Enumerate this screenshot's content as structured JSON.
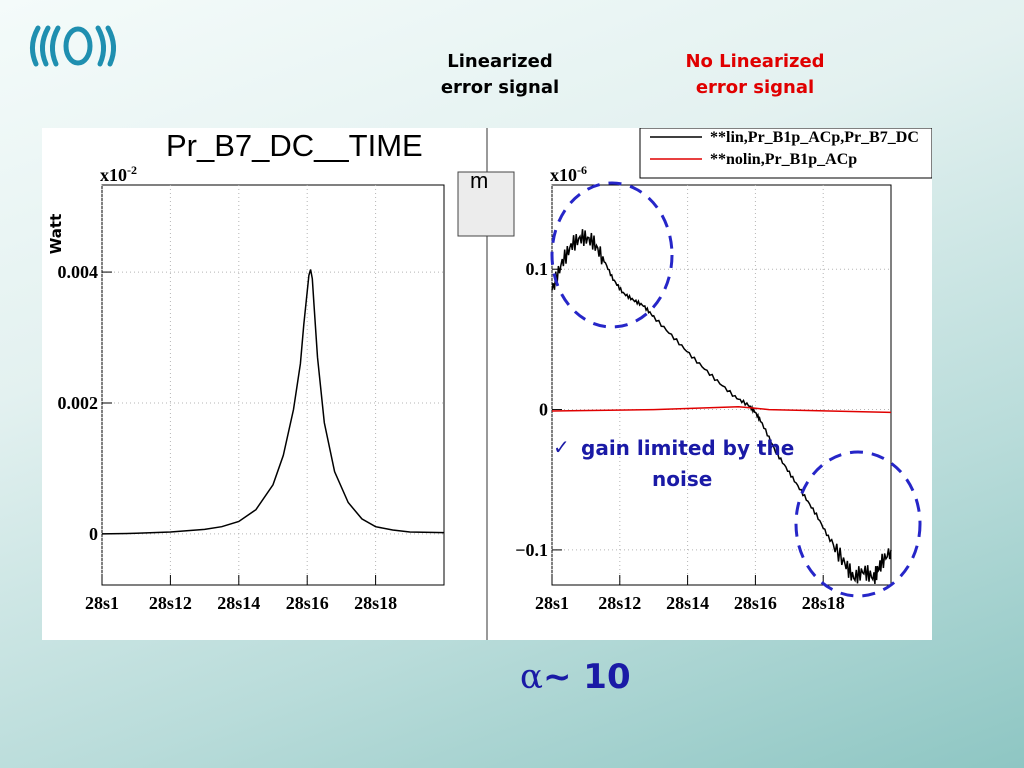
{
  "header": {
    "linearized_label": "Linearized\nerror signal",
    "nonlinearized_label": "No Linearized\nerror signal"
  },
  "colors": {
    "linearized": "#000000",
    "nonlinearized": "#e00000",
    "annotation": "#1a1aa6"
  },
  "icons": {
    "logo": "wave-arc-logo-icon",
    "annotation_bullet": "checkmark-icon"
  },
  "chart_data": [
    {
      "type": "line",
      "title": "Pr_B7_DC__TIME",
      "ylabel": "Watt",
      "y_exponent": "x10",
      "y_exponent_power": "-2",
      "x_tick_labels": [
        "28s1",
        "28s12",
        "28s14",
        "28s16",
        "28s18"
      ],
      "y_tick_labels": [
        "0",
        "0.002",
        "0.004"
      ],
      "xlim": [
        0,
        1
      ],
      "ylim": [
        -0.00078,
        0.00533
      ],
      "x_ticks": [
        0.0,
        0.2,
        0.4,
        0.6,
        0.8
      ],
      "y_ticks": [
        0,
        0.002,
        0.004
      ],
      "grid": true,
      "series": [
        {
          "color": "#000000",
          "points": [
            [
              0.0,
              0.0
            ],
            [
              0.1,
              1e-05
            ],
            [
              0.2,
              3e-05
            ],
            [
              0.3,
              7e-05
            ],
            [
              0.35,
              0.00011
            ],
            [
              0.4,
              0.00019
            ],
            [
              0.45,
              0.00037
            ],
            [
              0.5,
              0.00075
            ],
            [
              0.53,
              0.0012
            ],
            [
              0.56,
              0.0019
            ],
            [
              0.58,
              0.0026
            ],
            [
              0.59,
              0.0032
            ],
            [
              0.6,
              0.0037
            ],
            [
              0.605,
              0.00395
            ],
            [
              0.61,
              0.00404
            ],
            [
              0.615,
              0.0039
            ],
            [
              0.62,
              0.0035
            ],
            [
              0.63,
              0.0027
            ],
            [
              0.65,
              0.0017
            ],
            [
              0.68,
              0.00095
            ],
            [
              0.72,
              0.00048
            ],
            [
              0.76,
              0.00023
            ],
            [
              0.8,
              0.00011
            ],
            [
              0.85,
              6e-05
            ],
            [
              0.9,
              3e-05
            ],
            [
              1.0,
              2e-05
            ]
          ]
        }
      ]
    },
    {
      "type": "line",
      "y_exponent": "x10",
      "y_exponent_power": "-6",
      "x_tick_labels": [
        "28s1",
        "28s12",
        "28s14",
        "28s16",
        "28s18"
      ],
      "y_tick_labels": [
        "0.1",
        "0",
        "−0.1"
      ],
      "xlim": [
        0,
        1
      ],
      "ylim": [
        -0.125,
        0.16
      ],
      "x_ticks": [
        0.0,
        0.2,
        0.4,
        0.6,
        0.8
      ],
      "y_ticks": [
        0.1,
        0.0,
        -0.1
      ],
      "grid": true,
      "legend": {
        "placement": "top-right",
        "entries": [
          {
            "label": "**lin,Pr_B1p_ACp,Pr_B7_DC",
            "color": "#000000"
          },
          {
            "label": "**nolin,Pr_B1p_ACp",
            "color": "#e00000"
          }
        ]
      },
      "series": [
        {
          "name": "**lin,Pr_B1p_ACp,Pr_B7_DC",
          "color": "#000000",
          "noisy": true,
          "points": [
            [
              0.0,
              0.085
            ],
            [
              0.03,
              0.105
            ],
            [
              0.06,
              0.118
            ],
            [
              0.09,
              0.123
            ],
            [
              0.12,
              0.12
            ],
            [
              0.15,
              0.108
            ],
            [
              0.18,
              0.093
            ],
            [
              0.21,
              0.083
            ],
            [
              0.24,
              0.078
            ],
            [
              0.27,
              0.074
            ],
            [
              0.3,
              0.066
            ],
            [
              0.36,
              0.051
            ],
            [
              0.42,
              0.036
            ],
            [
              0.48,
              0.022
            ],
            [
              0.54,
              0.009
            ],
            [
              0.58,
              0.003
            ],
            [
              0.6,
              -0.002
            ],
            [
              0.62,
              -0.01
            ],
            [
              0.66,
              -0.03
            ],
            [
              0.7,
              -0.045
            ],
            [
              0.74,
              -0.06
            ],
            [
              0.78,
              -0.075
            ],
            [
              0.82,
              -0.093
            ],
            [
              0.86,
              -0.108
            ],
            [
              0.89,
              -0.12
            ],
            [
              0.92,
              -0.115
            ],
            [
              0.95,
              -0.12
            ],
            [
              0.97,
              -0.11
            ],
            [
              1.0,
              -0.1
            ]
          ]
        },
        {
          "name": "**nolin,Pr_B1p_ACp",
          "color": "#e00000",
          "points": [
            [
              0.0,
              -0.001
            ],
            [
              0.3,
              0.0
            ],
            [
              0.55,
              0.002
            ],
            [
              0.6,
              0.001
            ],
            [
              0.64,
              0.0
            ],
            [
              1.0,
              -0.002
            ]
          ]
        }
      ],
      "annotations": [
        "gain limited by the",
        "noise"
      ]
    }
  ],
  "separator_button_label": "m",
  "alpha_symbol": "α",
  "alpha_text": "~ 10"
}
